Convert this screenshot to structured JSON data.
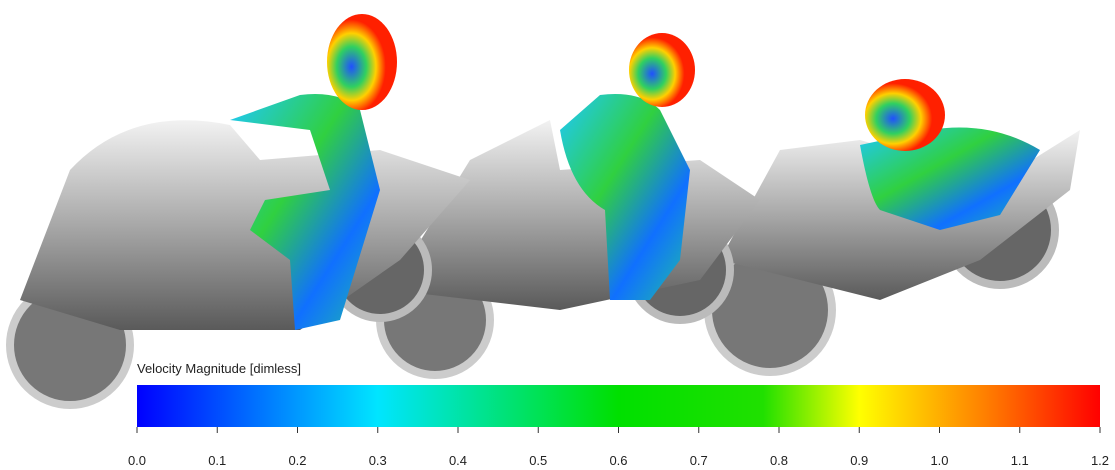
{
  "colorbar": {
    "title": "Velocity Magnitude [dimless]",
    "range": [
      0,
      1.2
    ],
    "ticks": [
      {
        "value": 0,
        "label": "0.0"
      },
      {
        "value": 0.1,
        "label": "0.1"
      },
      {
        "value": 0.2,
        "label": "0.2"
      },
      {
        "value": 0.3,
        "label": "0.3"
      },
      {
        "value": 0.4,
        "label": "0.4"
      },
      {
        "value": 0.5,
        "label": "0.5"
      },
      {
        "value": 0.6,
        "label": "0.6"
      },
      {
        "value": 0.7,
        "label": "0.7"
      },
      {
        "value": 0.8,
        "label": "0.8"
      },
      {
        "value": 0.9,
        "label": "0.9"
      },
      {
        "value": 1.0,
        "label": "1.0"
      },
      {
        "value": 1.1,
        "label": "1.1"
      },
      {
        "value": 1.2,
        "label": "1.2"
      }
    ]
  }
}
